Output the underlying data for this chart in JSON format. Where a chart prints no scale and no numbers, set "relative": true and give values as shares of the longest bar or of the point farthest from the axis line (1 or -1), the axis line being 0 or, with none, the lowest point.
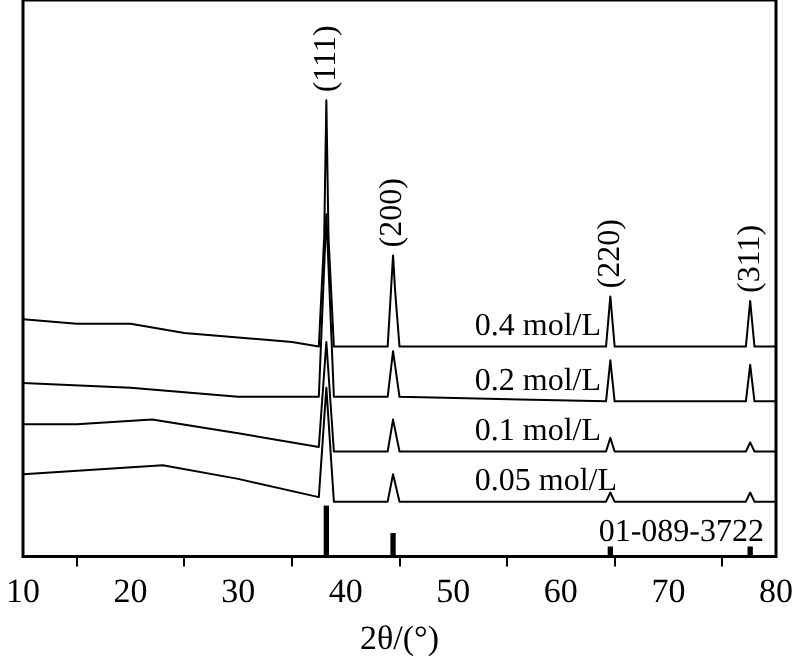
{
  "chart_data": {
    "type": "line",
    "relative": true,
    "xlabel": "2θ/(°)",
    "xlim": [
      10,
      80
    ],
    "xticks": [
      10,
      20,
      30,
      40,
      50,
      60,
      70,
      80
    ],
    "grid": false,
    "legend": false,
    "marker": "none",
    "series": [
      {
        "name": "0.4 mol/L",
        "color": "#000000",
        "x": [
          10,
          15,
          20,
          25,
          30,
          35,
          37.5,
          38.0,
          38.2,
          38.4,
          38.9,
          43.9,
          44.2,
          44.4,
          44.6,
          45,
          55,
          64.2,
          64.6,
          65,
          77.2,
          77.6,
          78,
          80
        ],
        "values": [
          0.52,
          0.51,
          0.51,
          0.49,
          0.48,
          0.47,
          0.46,
          0.7,
          1,
          0.7,
          0.46,
          0.46,
          0.58,
          0.66,
          0.58,
          0.46,
          0.46,
          0.46,
          0.57,
          0.46,
          0.46,
          0.56,
          0.46,
          0.46
        ]
      },
      {
        "name": "0.2 mol/L",
        "color": "#000000",
        "x": [
          10,
          20,
          30,
          37.5,
          38.2,
          38.9,
          43.9,
          44.4,
          45,
          64.2,
          64.6,
          65,
          77.2,
          77.6,
          78,
          80
        ],
        "values": [
          0.38,
          0.37,
          0.35,
          0.35,
          0.75,
          0.35,
          0.35,
          0.45,
          0.35,
          0.34,
          0.43,
          0.34,
          0.34,
          0.42,
          0.34,
          0.34
        ]
      },
      {
        "name": "0.1 mol/L",
        "color": "#000000",
        "x": [
          10,
          15,
          22,
          30,
          37.5,
          38.2,
          38.9,
          43.9,
          44.4,
          45,
          64.2,
          64.6,
          65,
          77.2,
          77.6,
          78,
          80
        ],
        "values": [
          0.29,
          0.29,
          0.3,
          0.27,
          0.24,
          0.47,
          0.23,
          0.23,
          0.3,
          0.23,
          0.23,
          0.26,
          0.23,
          0.23,
          0.25,
          0.23,
          0.23
        ]
      },
      {
        "name": "0.05 mol/L",
        "color": "#000000",
        "x": [
          10,
          23,
          30,
          37.5,
          38.2,
          38.9,
          43.9,
          44.4,
          45,
          64.2,
          64.6,
          65,
          77.2,
          77.6,
          78,
          80
        ],
        "values": [
          0.18,
          0.2,
          0.17,
          0.13,
          0.37,
          0.12,
          0.12,
          0.18,
          0.12,
          0.12,
          0.14,
          0.12,
          0.12,
          0.14,
          0.12,
          0.12
        ]
      },
      {
        "name": "01-089-3722",
        "type": "bar",
        "color": "#000000",
        "x": [
          38.2,
          44.4,
          64.6,
          77.6
        ],
        "values": [
          0.11,
          0.05,
          0.02,
          0.02
        ]
      }
    ],
    "annotations": [
      {
        "text": "(111)",
        "x": 38.2,
        "y": 1
      },
      {
        "text": "(200)",
        "x": 44.4,
        "y": 0.66
      },
      {
        "text": "(220)",
        "x": 64.6,
        "y": 0.57
      },
      {
        "text": "(311)",
        "x": 77.6,
        "y": 0.56
      }
    ]
  }
}
